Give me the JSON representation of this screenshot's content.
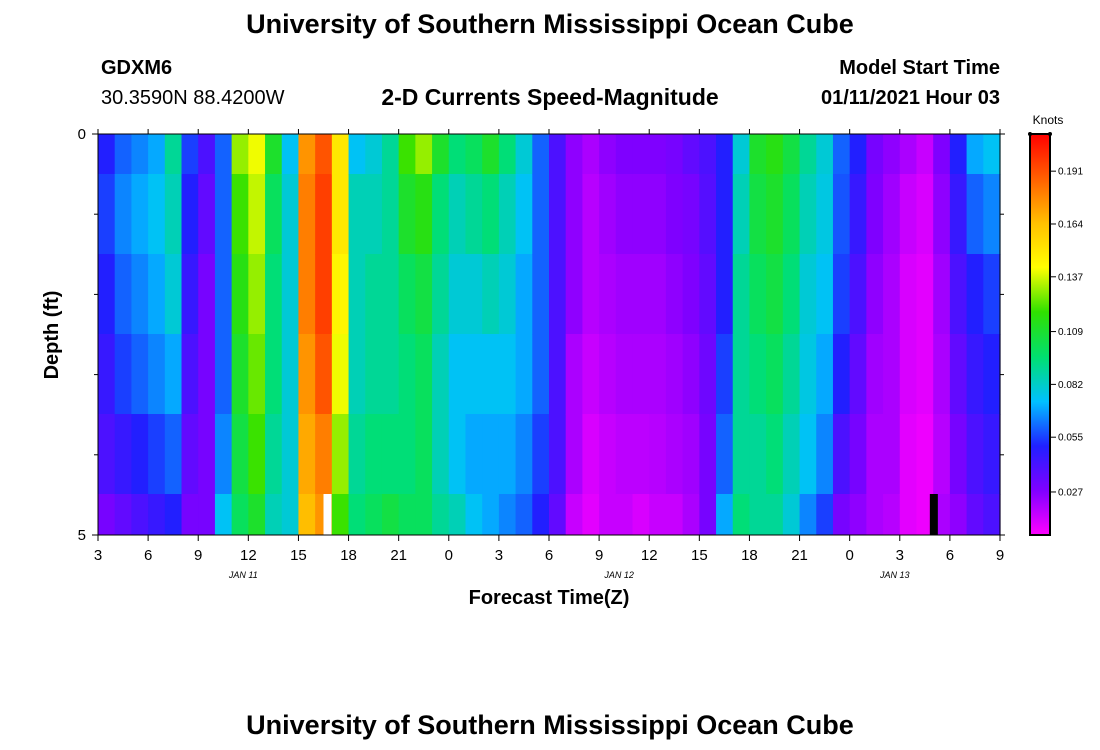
{
  "header": {
    "org_title": "University of Southern Mississippi Ocean Cube",
    "station_id": "GDXM6",
    "coordinates": "30.3590N 88.4200W",
    "plot_title": "2-D Currents Speed-Magnitude",
    "model_start_label": "Model Start Time",
    "model_start_value": "01/11/2021 Hour 03"
  },
  "footer": {
    "org_title": "University of Southern Mississippi Ocean Cube"
  },
  "chart_data": {
    "type": "heatmap",
    "title": "2-D Currents Speed-Magnitude",
    "xlabel": "Forecast Time(Z)",
    "ylabel": "Depth (ft)",
    "x_tick_labels": [
      "3",
      "6",
      "9",
      "12",
      "15",
      "18",
      "21",
      "0",
      "3",
      "6",
      "9",
      "12",
      "15",
      "18",
      "21",
      "0",
      "3",
      "6",
      "9"
    ],
    "x_date_labels": [
      {
        "label": "JAN 11",
        "index": 2.6
      },
      {
        "label": "JAN 12",
        "index": 10.1
      },
      {
        "label": "JAN 13",
        "index": 15.6
      }
    ],
    "hours_total": 54,
    "y_tick_labels": [
      {
        "label": "0",
        "depth": 0
      },
      {
        "label": "5",
        "depth": 5
      }
    ],
    "ylim": [
      0,
      5
    ],
    "y_minor_ticks": [
      1,
      2,
      3,
      4
    ],
    "units": "Knots",
    "colorbar_ticks": [
      0.027,
      0.055,
      0.082,
      0.109,
      0.137,
      0.164,
      0.191
    ],
    "colorbar_range": [
      0.005,
      0.21
    ],
    "colorscale": [
      "#ff00ff",
      "#8000ff",
      "#2020ff",
      "#00c0ff",
      "#00e070",
      "#30e000",
      "#ffff00",
      "#ffc000",
      "#ff6000",
      "#ff0000"
    ],
    "depth_layer_count": 6,
    "time_steps": 54,
    "column_profiles": [
      [
        0.05,
        0.055,
        0.05,
        0.045,
        0.04,
        0.03
      ],
      [
        0.06,
        0.065,
        0.06,
        0.055,
        0.045,
        0.035
      ],
      [
        0.065,
        0.07,
        0.065,
        0.06,
        0.05,
        0.04
      ],
      [
        0.07,
        0.075,
        0.07,
        0.065,
        0.055,
        0.045
      ],
      [
        0.09,
        0.085,
        0.08,
        0.07,
        0.06,
        0.05
      ],
      [
        0.055,
        0.05,
        0.045,
        0.04,
        0.035,
        0.03
      ],
      [
        0.04,
        0.035,
        0.03,
        0.03,
        0.03,
        0.03
      ],
      [
        0.06,
        0.06,
        0.06,
        0.06,
        0.065,
        0.075
      ],
      [
        0.13,
        0.12,
        0.115,
        0.11,
        0.105,
        0.1
      ],
      [
        0.14,
        0.135,
        0.13,
        0.125,
        0.12,
        0.11
      ],
      [
        0.11,
        0.1,
        0.095,
        0.095,
        0.09,
        0.085
      ],
      [
        0.075,
        0.08,
        0.08,
        0.08,
        0.08,
        0.08
      ],
      [
        0.175,
        0.18,
        0.18,
        0.175,
        0.17,
        0.165
      ],
      [
        0.19,
        0.195,
        0.195,
        0.19,
        0.18,
        0.175
      ],
      [
        0.15,
        0.15,
        0.145,
        0.14,
        0.13,
        0.12
      ],
      [
        0.075,
        0.085,
        0.085,
        0.085,
        0.09,
        0.095
      ],
      [
        0.08,
        0.085,
        0.09,
        0.09,
        0.095,
        0.1
      ],
      [
        0.09,
        0.09,
        0.09,
        0.09,
        0.095,
        0.105
      ],
      [
        0.12,
        0.11,
        0.1,
        0.095,
        0.095,
        0.1
      ],
      [
        0.13,
        0.115,
        0.105,
        0.1,
        0.1,
        0.1
      ],
      [
        0.11,
        0.095,
        0.09,
        0.085,
        0.085,
        0.09
      ],
      [
        0.095,
        0.085,
        0.08,
        0.075,
        0.075,
        0.085
      ],
      [
        0.1,
        0.09,
        0.08,
        0.075,
        0.07,
        0.075
      ],
      [
        0.11,
        0.095,
        0.085,
        0.075,
        0.07,
        0.07
      ],
      [
        0.095,
        0.085,
        0.08,
        0.075,
        0.07,
        0.065
      ],
      [
        0.08,
        0.075,
        0.07,
        0.07,
        0.065,
        0.06
      ],
      [
        0.06,
        0.06,
        0.06,
        0.06,
        0.055,
        0.05
      ],
      [
        0.04,
        0.04,
        0.04,
        0.04,
        0.04,
        0.035
      ],
      [
        0.025,
        0.025,
        0.025,
        0.02,
        0.02,
        0.015
      ],
      [
        0.02,
        0.018,
        0.018,
        0.015,
        0.012,
        0.01
      ],
      [
        0.025,
        0.022,
        0.02,
        0.018,
        0.015,
        0.015
      ],
      [
        0.028,
        0.025,
        0.022,
        0.02,
        0.017,
        0.015
      ],
      [
        0.028,
        0.025,
        0.022,
        0.02,
        0.017,
        0.012
      ],
      [
        0.028,
        0.025,
        0.022,
        0.02,
        0.018,
        0.015
      ],
      [
        0.03,
        0.028,
        0.025,
        0.022,
        0.02,
        0.015
      ],
      [
        0.035,
        0.03,
        0.028,
        0.025,
        0.022,
        0.02
      ],
      [
        0.04,
        0.038,
        0.035,
        0.032,
        0.03,
        0.03
      ],
      [
        0.05,
        0.05,
        0.05,
        0.055,
        0.06,
        0.07
      ],
      [
        0.08,
        0.085,
        0.09,
        0.09,
        0.09,
        0.095
      ],
      [
        0.11,
        0.105,
        0.1,
        0.095,
        0.09,
        0.09
      ],
      [
        0.115,
        0.11,
        0.105,
        0.1,
        0.095,
        0.09
      ],
      [
        0.105,
        0.1,
        0.095,
        0.09,
        0.085,
        0.08
      ],
      [
        0.09,
        0.085,
        0.08,
        0.078,
        0.075,
        0.065
      ],
      [
        0.08,
        0.078,
        0.075,
        0.07,
        0.065,
        0.055
      ],
      [
        0.06,
        0.058,
        0.055,
        0.05,
        0.04,
        0.03
      ],
      [
        0.05,
        0.045,
        0.04,
        0.035,
        0.03,
        0.025
      ],
      [
        0.03,
        0.028,
        0.025,
        0.022,
        0.02,
        0.02
      ],
      [
        0.025,
        0.022,
        0.02,
        0.02,
        0.02,
        0.018
      ],
      [
        0.02,
        0.015,
        0.012,
        0.012,
        0.01,
        0.01
      ],
      [
        0.015,
        0.012,
        0.01,
        0.01,
        0.008,
        0.008
      ],
      [
        0.028,
        0.025,
        0.022,
        0.02,
        0.018,
        0.02
      ],
      [
        0.05,
        0.045,
        0.04,
        0.035,
        0.03,
        0.025
      ],
      [
        0.07,
        0.06,
        0.05,
        0.045,
        0.04,
        0.035
      ],
      [
        0.075,
        0.065,
        0.055,
        0.05,
        0.045,
        0.04
      ]
    ],
    "bottom_markers": [
      {
        "time_index": 13.5,
        "color": "#ffffff"
      },
      {
        "time_index": 49.8,
        "color": "#000000"
      }
    ]
  }
}
